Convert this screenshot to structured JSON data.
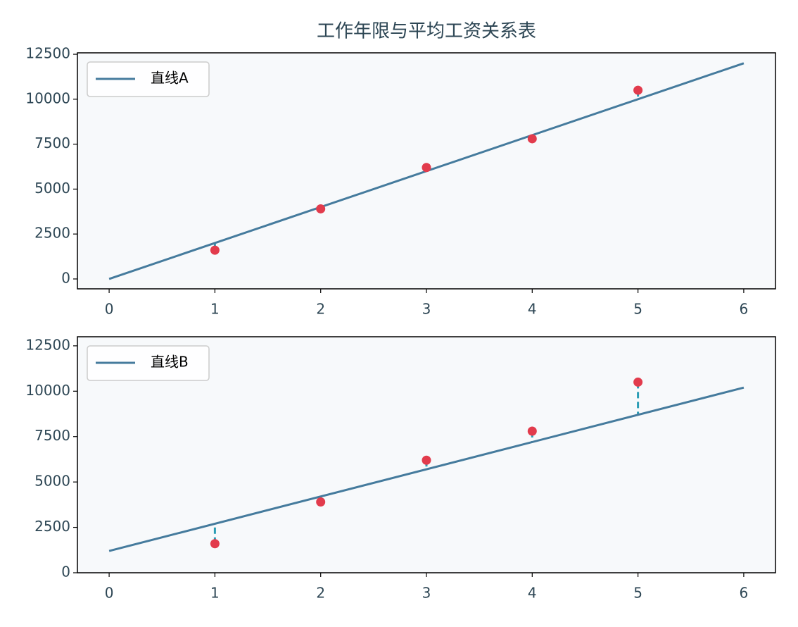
{
  "chart_data": [
    {
      "type": "scatter",
      "title": "工作年限与平均工资关系表",
      "x": [
        1,
        2,
        3,
        4,
        5
      ],
      "points": {
        "color": "#e23b4c",
        "values": [
          1600,
          3900,
          6200,
          7800,
          10500
        ]
      },
      "line": {
        "name": "直线A",
        "color": "#457b9d",
        "x": [
          0,
          6
        ],
        "values": [
          0,
          12000
        ]
      },
      "residual_color": "#2a9db5",
      "xlim": [
        -0.3,
        6.3
      ],
      "ylim": [
        -550,
        12580
      ],
      "xticks": [
        0,
        1,
        2,
        3,
        4,
        5,
        6
      ],
      "yticks": [
        0,
        2500,
        5000,
        7500,
        10000,
        12500
      ],
      "legend": "upper left",
      "background": "#f7f9fb"
    },
    {
      "type": "scatter",
      "x": [
        1,
        2,
        3,
        4,
        5
      ],
      "points": {
        "color": "#e23b4c",
        "values": [
          1600,
          3900,
          6200,
          7800,
          10500
        ]
      },
      "line": {
        "name": "直线B",
        "color": "#457b9d",
        "x": [
          0,
          6
        ],
        "values": [
          1200,
          10200
        ]
      },
      "residual_color": "#2a9db5",
      "xlim": [
        -0.3,
        6.3
      ],
      "ylim": [
        0,
        13000
      ],
      "xticks": [
        0,
        1,
        2,
        3,
        4,
        5,
        6
      ],
      "yticks": [
        0,
        2500,
        5000,
        7500,
        10000,
        12500
      ],
      "legend": "upper left",
      "background": "#f7f9fb"
    }
  ]
}
